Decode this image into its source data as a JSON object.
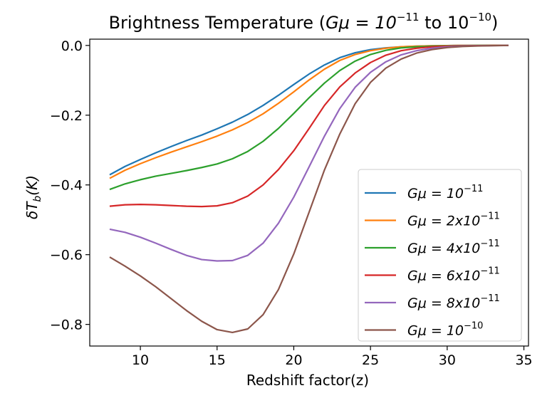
{
  "chart_data": {
    "type": "line",
    "title": "Brightness Temperature (",
    "title_math": "Gμ = 10",
    "title_exp1": "−11",
    "title_mid": " to 10",
    "title_exp2": "−10",
    "title_end": ")",
    "xlabel": "Redshift factor(z)",
    "ylabel": "δT",
    "ylabel_sub": "b",
    "ylabel_end": "(K)",
    "xlim": [
      6.7,
      35.3
    ],
    "ylim": [
      -0.862,
      0.018
    ],
    "xticks": [
      10,
      15,
      20,
      25,
      30,
      35
    ],
    "xtick_labels": [
      "10",
      "15",
      "20",
      "25",
      "30",
      "35"
    ],
    "yticks": [
      0.0,
      -0.2,
      -0.4,
      -0.6,
      -0.8
    ],
    "ytick_labels": [
      "0.0",
      "−0.2",
      "−0.4",
      "−0.6",
      "−0.8"
    ],
    "grid": false,
    "legend_position": "lower-right",
    "x": [
      8,
      9,
      10,
      11,
      12,
      13,
      14,
      15,
      16,
      17,
      18,
      19,
      20,
      21,
      22,
      23,
      24,
      25,
      26,
      27,
      28,
      29,
      30,
      31,
      32,
      33,
      34
    ],
    "series": [
      {
        "name": "Gμ = 10",
        "exp": "−11",
        "color": "#1f77b4",
        "values": [
          -0.371,
          -0.347,
          -0.327,
          -0.308,
          -0.29,
          -0.273,
          -0.257,
          -0.239,
          -0.22,
          -0.198,
          -0.172,
          -0.143,
          -0.112,
          -0.082,
          -0.056,
          -0.035,
          -0.021,
          -0.012,
          -0.007,
          -0.004,
          -0.002,
          -0.001,
          -0.0005,
          -0.0002,
          -0.0001,
          0.0,
          0.0
        ]
      },
      {
        "name": "Gμ = 2x10",
        "exp": "−11",
        "color": "#ff7f0e",
        "values": [
          -0.381,
          -0.358,
          -0.339,
          -0.322,
          -0.306,
          -0.291,
          -0.276,
          -0.26,
          -0.242,
          -0.221,
          -0.196,
          -0.166,
          -0.133,
          -0.099,
          -0.068,
          -0.043,
          -0.026,
          -0.015,
          -0.008,
          -0.004,
          -0.002,
          -0.001,
          -0.0005,
          -0.0002,
          -0.0001,
          0.0,
          0.0
        ]
      },
      {
        "name": "Gμ = 4x10",
        "exp": "−11",
        "color": "#2ca02c",
        "values": [
          -0.413,
          -0.397,
          -0.385,
          -0.375,
          -0.367,
          -0.359,
          -0.35,
          -0.34,
          -0.325,
          -0.304,
          -0.275,
          -0.238,
          -0.195,
          -0.15,
          -0.108,
          -0.072,
          -0.045,
          -0.026,
          -0.014,
          -0.007,
          -0.004,
          -0.002,
          -0.001,
          -0.0005,
          -0.0002,
          -0.0001,
          0.0
        ]
      },
      {
        "name": "Gμ = 6x10",
        "exp": "−11",
        "color": "#d62728",
        "values": [
          -0.461,
          -0.457,
          -0.456,
          -0.457,
          -0.459,
          -0.461,
          -0.462,
          -0.46,
          -0.451,
          -0.432,
          -0.4,
          -0.356,
          -0.302,
          -0.238,
          -0.172,
          -0.119,
          -0.079,
          -0.049,
          -0.028,
          -0.015,
          -0.008,
          -0.004,
          -0.002,
          -0.001,
          -0.0005,
          -0.0002,
          0.0
        ]
      },
      {
        "name": "Gμ = 8x10",
        "exp": "−11",
        "color": "#9467bd",
        "values": [
          -0.527,
          -0.536,
          -0.55,
          -0.567,
          -0.585,
          -0.602,
          -0.614,
          -0.618,
          -0.617,
          -0.602,
          -0.567,
          -0.51,
          -0.435,
          -0.348,
          -0.26,
          -0.181,
          -0.12,
          -0.077,
          -0.047,
          -0.027,
          -0.015,
          -0.008,
          -0.004,
          -0.002,
          -0.001,
          -0.0005,
          0.0
        ]
      },
      {
        "name": "Gμ = 10",
        "exp": "−10",
        "color": "#8c564b",
        "values": [
          -0.607,
          -0.633,
          -0.661,
          -0.692,
          -0.726,
          -0.76,
          -0.791,
          -0.815,
          -0.823,
          -0.813,
          -0.772,
          -0.7,
          -0.598,
          -0.478,
          -0.357,
          -0.254,
          -0.167,
          -0.106,
          -0.065,
          -0.039,
          -0.022,
          -0.012,
          -0.006,
          -0.003,
          -0.0015,
          -0.0007,
          0.0
        ]
      }
    ]
  }
}
